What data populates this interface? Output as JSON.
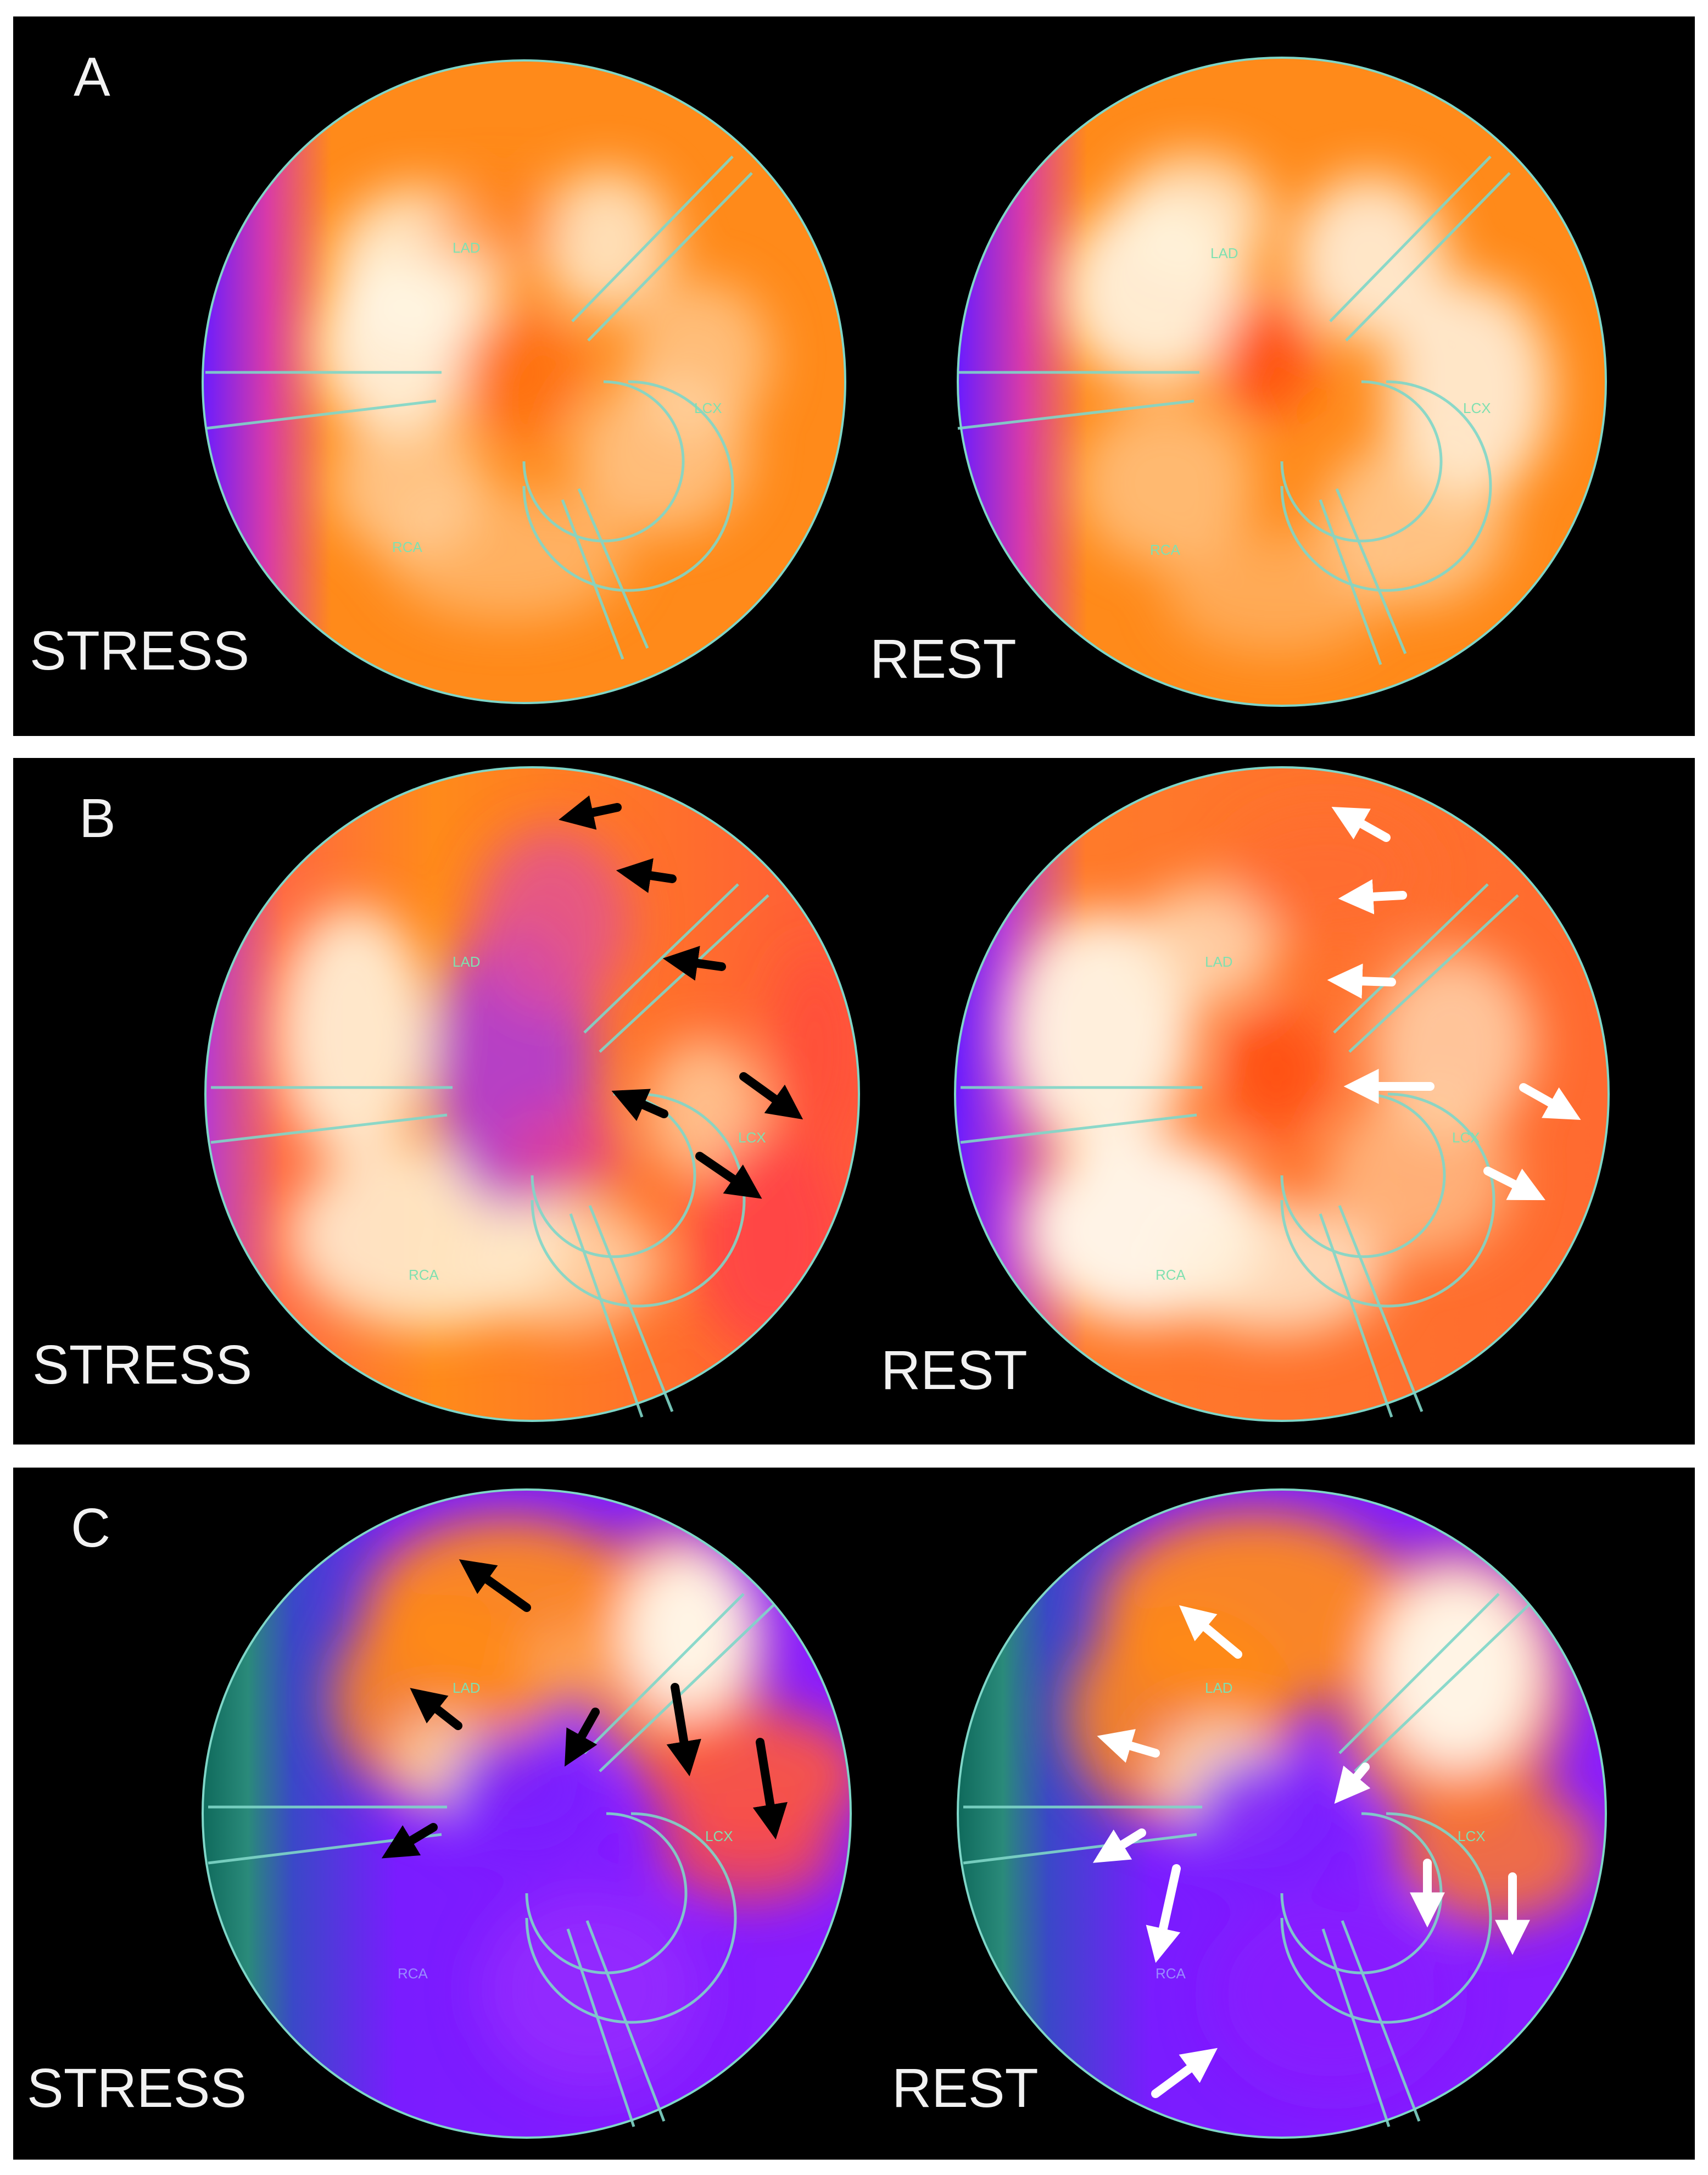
{
  "panels": [
    {
      "letter": "A",
      "stress": {
        "label": "STRESS",
        "territories": {
          "lad": "LAD",
          "lcx": "LCX",
          "rca": "RCA"
        },
        "arrows": []
      },
      "rest": {
        "label": "REST",
        "territories": {
          "lad": "LAD",
          "lcx": "LCX",
          "rca": "RCA"
        },
        "arrows": []
      }
    },
    {
      "letter": "B",
      "stress": {
        "label": "STRESS",
        "territories": {
          "lad": "LAD",
          "lcx": "LCX",
          "rca": "RCA"
        },
        "arrows": [
          {
            "color": "black",
            "direction": "left"
          },
          {
            "color": "black",
            "direction": "left"
          },
          {
            "color": "black",
            "direction": "left"
          },
          {
            "color": "black",
            "direction": "up-left"
          },
          {
            "color": "black",
            "direction": "down-right"
          },
          {
            "color": "black",
            "direction": "down-right"
          }
        ]
      },
      "rest": {
        "label": "REST",
        "territories": {
          "lad": "LAD",
          "lcx": "LCX",
          "rca": "RCA"
        },
        "arrows": [
          {
            "color": "white",
            "direction": "up-left"
          },
          {
            "color": "white",
            "direction": "left"
          },
          {
            "color": "white",
            "direction": "left"
          },
          {
            "color": "white",
            "direction": "left"
          },
          {
            "color": "white",
            "direction": "down-right"
          },
          {
            "color": "white",
            "direction": "down-right"
          }
        ]
      }
    },
    {
      "letter": "C",
      "stress": {
        "label": "STRESS",
        "territories": {
          "lad": "LAD",
          "lcx": "LCX",
          "rca": "RCA"
        },
        "arrows": [
          {
            "color": "black",
            "direction": "up-left"
          },
          {
            "color": "black",
            "direction": "up-left"
          },
          {
            "color": "black",
            "direction": "down-left"
          },
          {
            "color": "black",
            "direction": "down"
          },
          {
            "color": "black",
            "direction": "down"
          },
          {
            "color": "black",
            "direction": "down-left"
          }
        ]
      },
      "rest": {
        "label": "REST",
        "territories": {
          "lad": "LAD",
          "lcx": "LCX",
          "rca": "RCA"
        },
        "arrows": [
          {
            "color": "white",
            "direction": "up-left"
          },
          {
            "color": "white",
            "direction": "left"
          },
          {
            "color": "white",
            "direction": "down-left"
          },
          {
            "color": "white",
            "direction": "down-left"
          },
          {
            "color": "white",
            "direction": "down-left"
          },
          {
            "color": "white",
            "direction": "down"
          },
          {
            "color": "white",
            "direction": "down"
          },
          {
            "color": "white",
            "direction": "up-right"
          }
        ]
      }
    }
  ],
  "colors": {
    "background": "#000000",
    "separator": "#ffffff",
    "label_text": "#f2f2f2",
    "territory_border": "#7fd6c8",
    "territory_text": "#7fe0b0",
    "heat_white": "#fff6e6",
    "heat_orange": "#ff8a1a",
    "heat_red": "#ff4a3a",
    "heat_magenta": "#cc33cc",
    "heat_purple": "#7a1cff",
    "heat_teal": "#0f6a5c"
  }
}
